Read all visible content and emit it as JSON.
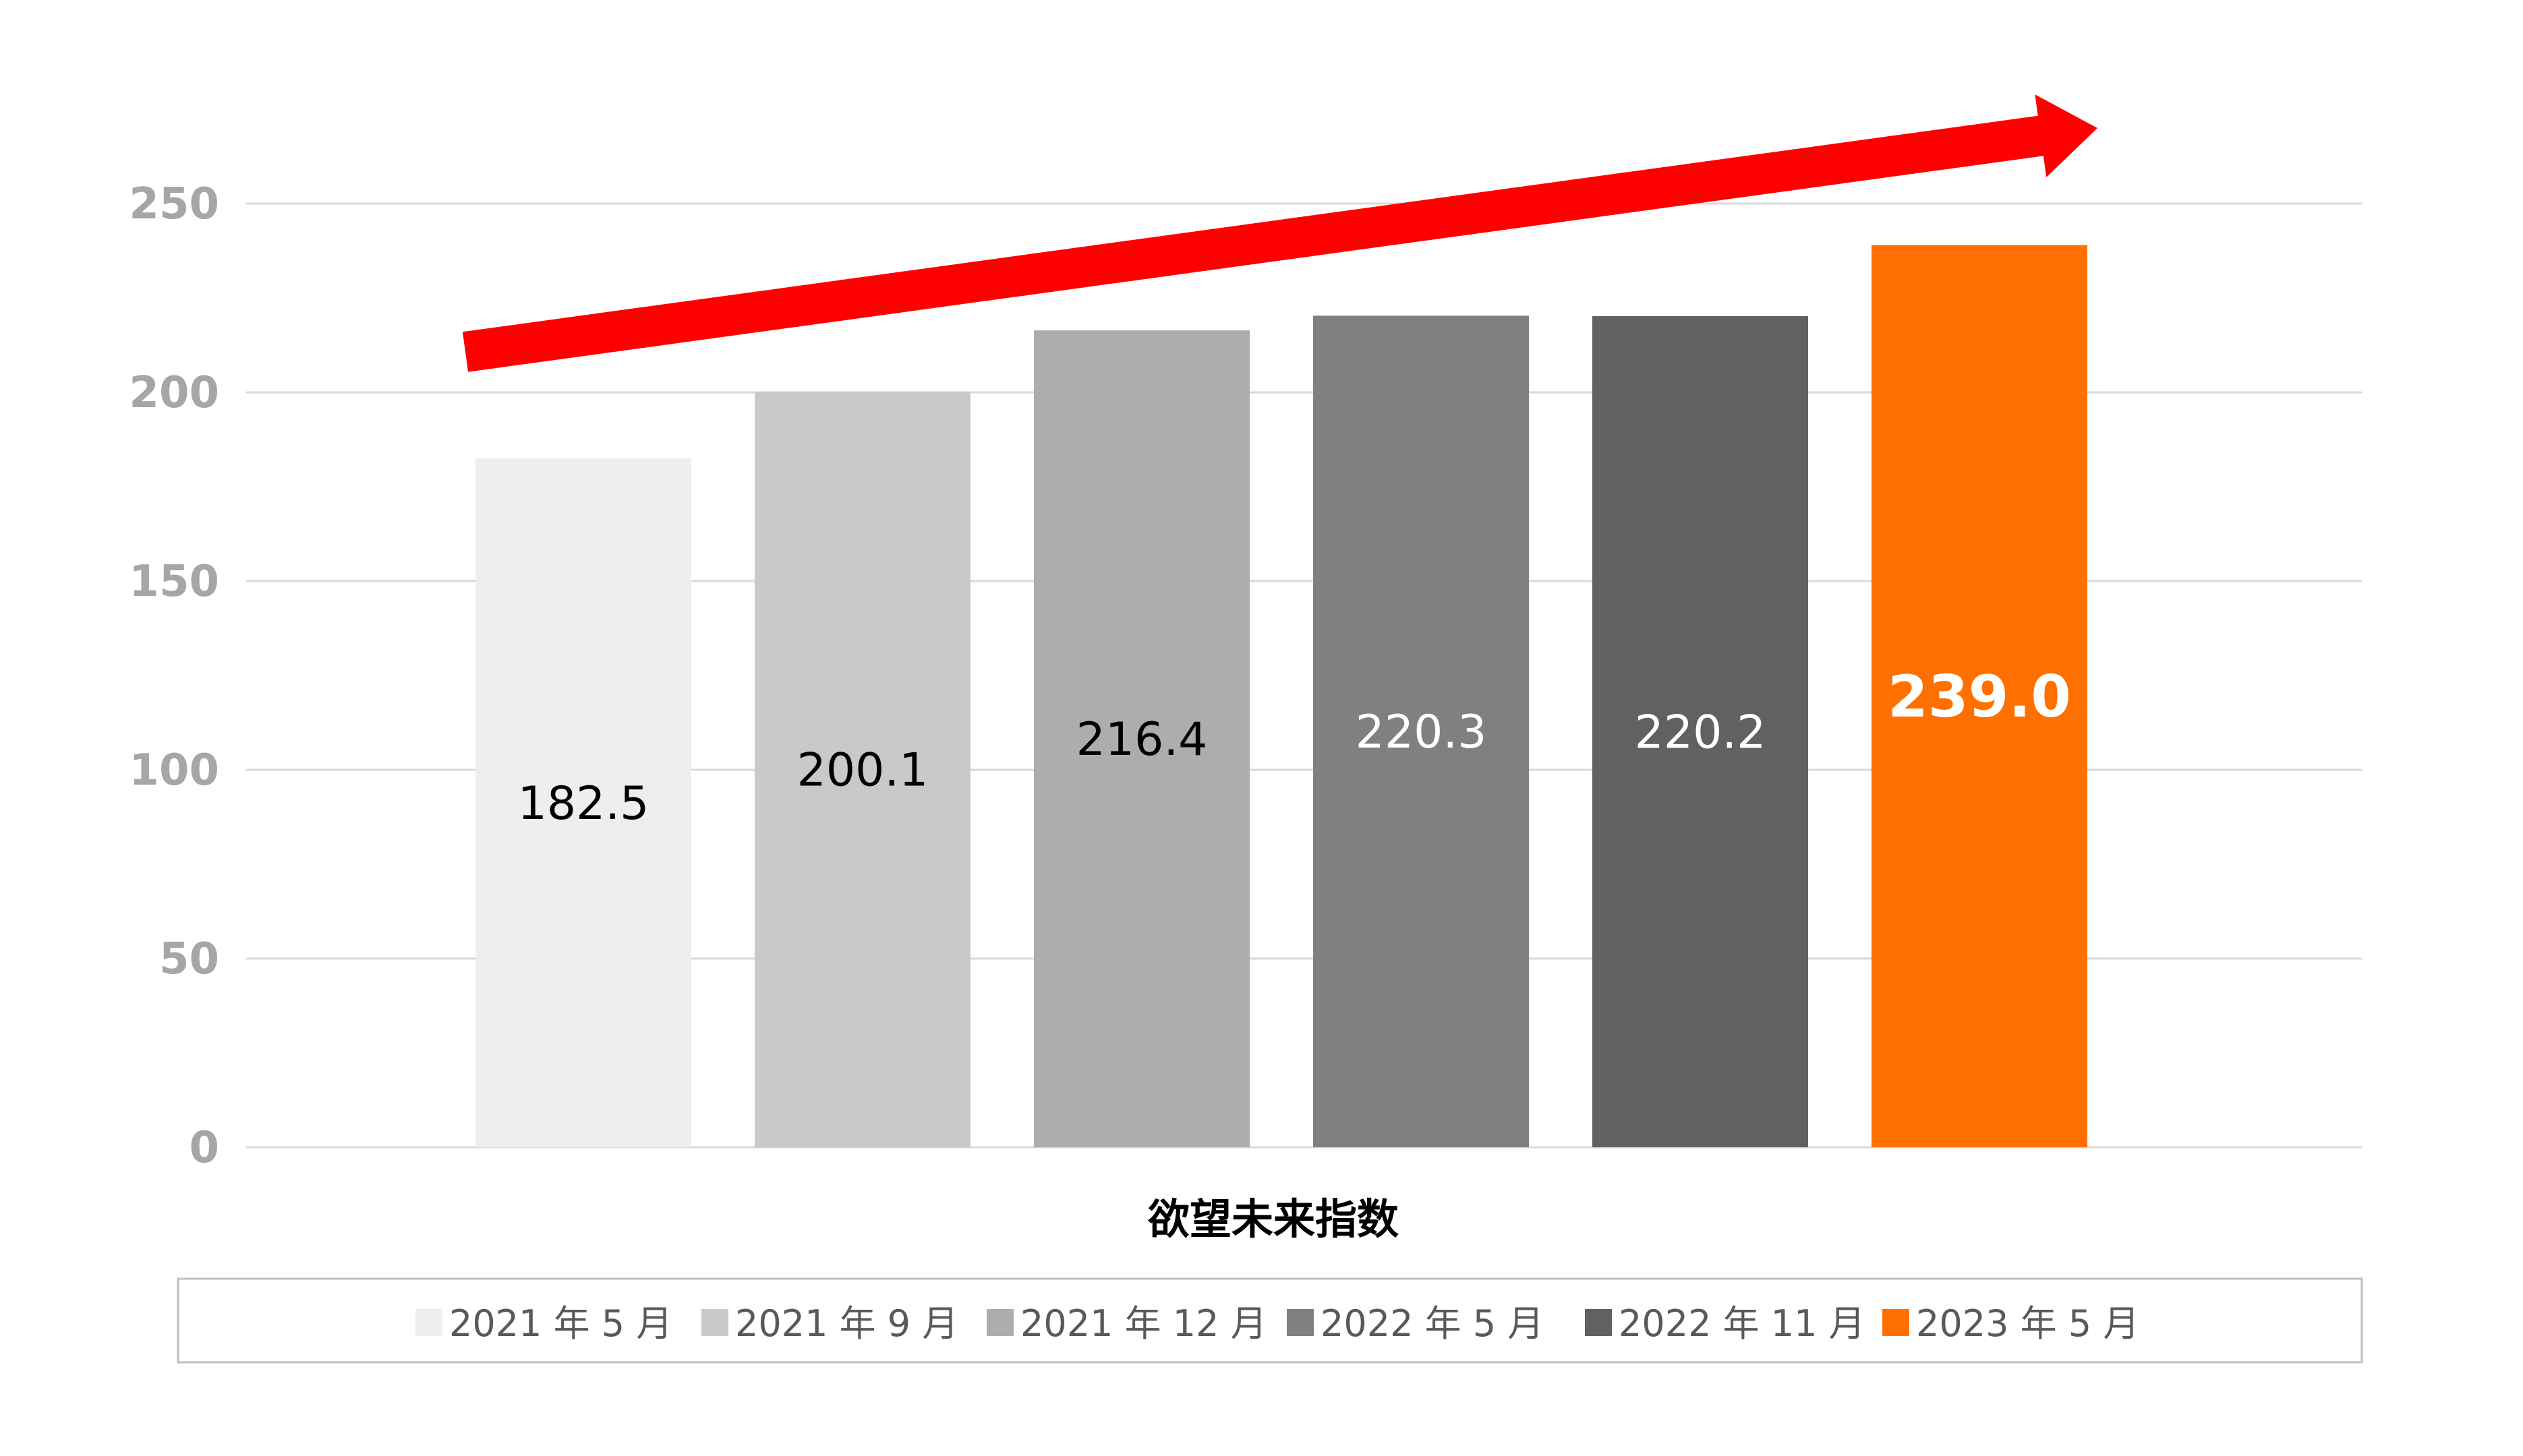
{
  "chart_data": {
    "type": "bar",
    "category": "欲望未来指数",
    "ylim": [
      0,
      250
    ],
    "yticks": [
      0,
      50,
      100,
      150,
      200,
      250
    ],
    "grid": true,
    "legend_position": "bottom",
    "series": [
      {
        "name": "2021 年 5 月",
        "value": 182.5,
        "label": "182.5",
        "color": "#eeeeee",
        "label_color": "#000000",
        "emphasis": false
      },
      {
        "name": "2021 年 9 月",
        "value": 200.1,
        "label": "200.1",
        "color": "#c9c9c9",
        "label_color": "#000000",
        "emphasis": false
      },
      {
        "name": "2021 年 12 月",
        "value": 216.4,
        "label": "216.4",
        "color": "#adadad",
        "label_color": "#000000",
        "emphasis": false
      },
      {
        "name": "2022 年 5 月",
        "value": 220.3,
        "label": "220.3",
        "color": "#808080",
        "label_color": "#ffffff",
        "emphasis": false
      },
      {
        "name": "2022 年 11 月",
        "value": 220.2,
        "label": "220.2",
        "color": "#616161",
        "label_color": "#ffffff",
        "emphasis": false
      },
      {
        "name": "2023 年 5 月",
        "value": 239.0,
        "label": "239.0",
        "color": "#ff7000",
        "label_color": "#ffffff",
        "emphasis": true
      }
    ],
    "arrow_color": "#ff0000",
    "gridline_color": "#d9d9d9",
    "legend_border_color": "#bfbfbf"
  }
}
